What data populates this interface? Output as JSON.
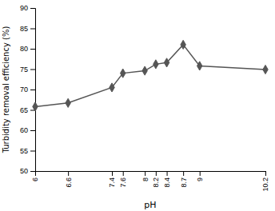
{
  "chart_data": {
    "type": "line",
    "x": [
      6,
      6.6,
      7.4,
      7.6,
      8,
      8.2,
      8.4,
      8.7,
      9,
      10.2
    ],
    "values": [
      65.8,
      66.7,
      70.5,
      74.0,
      74.6,
      76.2,
      76.6,
      81.0,
      75.8,
      74.9
    ],
    "xlabel": "pH",
    "ylabel": "Turbidity removal efficiency (%)",
    "xlim": [
      6,
      10.2
    ],
    "ylim": [
      50,
      90
    ],
    "xticks": [
      6,
      6.6,
      7.4,
      7.6,
      8,
      8.2,
      8.4,
      8.7,
      9,
      10.2
    ],
    "yticks": [
      50,
      55,
      60,
      65,
      70,
      75,
      80,
      85,
      90
    ],
    "color": "#555555",
    "marker": "diamond"
  }
}
